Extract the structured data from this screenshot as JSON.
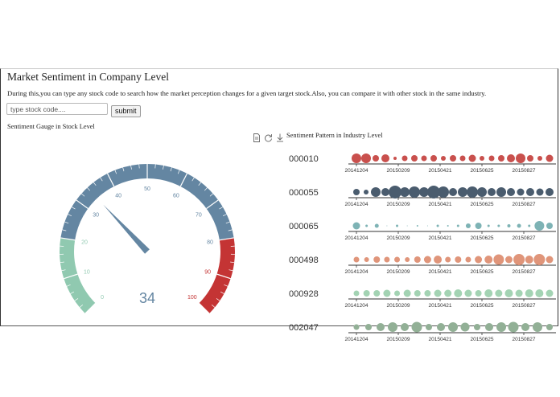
{
  "header": {
    "title": "Market Sentiment in Company Level",
    "description": "During this,you can type any stock code to search how the market perception changes for a given target stock.Also, you can compare it with other stock in the same industry."
  },
  "search": {
    "placeholder": "type stock code....",
    "value": "",
    "submit_label": "submit"
  },
  "gauge_section": {
    "label": "Sentiment Gauge in Stock Level"
  },
  "toolbox": {
    "icons": [
      "data-view-icon",
      "refresh-icon",
      "download-icon"
    ]
  },
  "industry_section": {
    "title": "Sentiment Pattern in Industry Level"
  },
  "colors": {
    "gauge_low": "#90c9b0",
    "gauge_mid": "#6486a2",
    "gauge_high": "#c43434",
    "needle": "#6486a2"
  },
  "chart_data": [
    {
      "type": "gauge",
      "min": 0,
      "max": 100,
      "value": 34,
      "ticks": [
        "0",
        "10",
        "20",
        "30",
        "40",
        "50",
        "60",
        "70",
        "80",
        "90",
        "100"
      ],
      "bands": [
        {
          "to": 20,
          "color": "#90c9b0"
        },
        {
          "to": 80,
          "color": "#6486a2"
        },
        {
          "to": 100,
          "color": "#c43434"
        }
      ]
    },
    {
      "type": "scatter",
      "x_ticks": [
        "20141204",
        "20150209",
        "20150421",
        "20150625",
        "20150827"
      ],
      "series": [
        {
          "name": "000010",
          "color": "#c9504d",
          "values": [
            6,
            6,
            4,
            5,
            2,
            3.5,
            4,
            3.5,
            4,
            3,
            4,
            3.5,
            4.5,
            3,
            3.5,
            4,
            5,
            6,
            4,
            3,
            4.5
          ]
        },
        {
          "name": "000055",
          "color": "#4a5c6e",
          "values": [
            4,
            3,
            6,
            5,
            8,
            6,
            7,
            6,
            8,
            7,
            5,
            6,
            7,
            6,
            5,
            6,
            5,
            4.5,
            5,
            4.5,
            5
          ]
        },
        {
          "name": "000065",
          "color": "#7eb3b5",
          "values": [
            4.5,
            1.5,
            2.5,
            0.5,
            1.5,
            0.5,
            1,
            0.5,
            1.5,
            1,
            1.5,
            3,
            4,
            1.5,
            1.5,
            2,
            2.5,
            1.5,
            6,
            4
          ]
        },
        {
          "name": "000498",
          "color": "#e0957a",
          "values": [
            3.5,
            3,
            4,
            3.5,
            3.5,
            3,
            4,
            4.5,
            5,
            3.5,
            4,
            3.5,
            4.5,
            5,
            6.5,
            4.5,
            7,
            5,
            7,
            4.5
          ]
        },
        {
          "name": "000928",
          "color": "#a3d3b3",
          "values": [
            3.5,
            4,
            4,
            4.5,
            3.5,
            4.5,
            4,
            4,
            4.5,
            4.5,
            5,
            4.5,
            4,
            5,
            4.5,
            5,
            4.5,
            5,
            5,
            4.5
          ]
        },
        {
          "name": "002047",
          "color": "#92b096",
          "values": [
            3.5,
            4,
            5,
            6,
            5,
            6.5,
            4,
            5,
            6,
            5.5,
            4,
            5,
            6,
            6.5,
            5,
            6,
            4
          ]
        }
      ]
    }
  ]
}
